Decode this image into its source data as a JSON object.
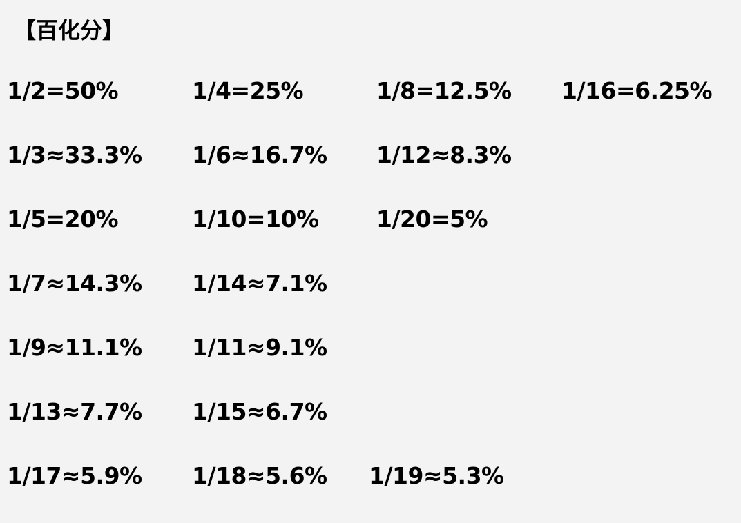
{
  "title": "【百化分】",
  "rows": [
    [
      "1/2=50%",
      "1/4=25%",
      "1/8=12.5%",
      "1/16=6.25%"
    ],
    [
      "1/3≈33.3%",
      "1/6≈16.7%",
      "1/12≈8.3%"
    ],
    [
      "1/5=20%",
      "1/10=10%",
      "1/20=5%"
    ],
    [
      "1/7≈14.3%",
      "1/14≈7.1%"
    ],
    [
      "1/9≈11.1%",
      "1/11≈9.1%"
    ],
    [
      "1/13≈7.7%",
      "1/15≈6.7%"
    ],
    [
      "1/17≈5.9%",
      "1/18≈5.6%",
      "1/19≈5.3%"
    ]
  ]
}
